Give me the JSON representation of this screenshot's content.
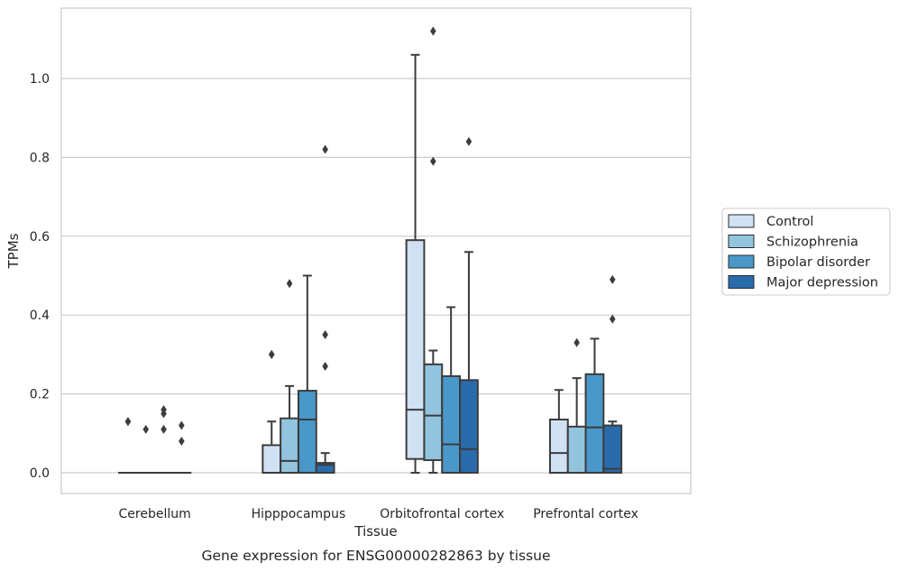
{
  "chart_data": {
    "type": "boxplot",
    "title": "",
    "caption": "Gene expression for ENSG00000282863 by tissue",
    "xlabel": "Tissue",
    "ylabel": "TPMs",
    "ylim": [
      -0.055,
      1.18
    ],
    "yticks": [
      0.0,
      0.2,
      0.4,
      0.6,
      0.8,
      1.0
    ],
    "ytick_labels": [
      "0.0",
      "0.2",
      "0.4",
      "0.6",
      "0.8",
      "1.0"
    ],
    "grid": "horizontal",
    "legend_position": "right",
    "categories": [
      "Cerebellum",
      "Hipppocampus",
      "Orbitofrontal cortex",
      "Prefrontal cortex"
    ],
    "series": [
      {
        "name": "Control",
        "color": "#cfe1f2",
        "boxes": [
          {
            "whislo": 0.0,
            "q1": 0.0,
            "med": 0.0,
            "q3": 0.0,
            "whishi": 0.0,
            "fliers": [
              0.13,
              0.13
            ]
          },
          {
            "whislo": 0.0,
            "q1": 0.0,
            "med": 0.0,
            "q3": 0.07,
            "whishi": 0.13,
            "fliers": [
              0.3,
              0.3
            ]
          },
          {
            "whislo": 0.0,
            "q1": 0.035,
            "med": 0.16,
            "q3": 0.59,
            "whishi": 1.06,
            "fliers": []
          },
          {
            "whislo": 0.0,
            "q1": 0.0,
            "med": 0.05,
            "q3": 0.135,
            "whishi": 0.21,
            "fliers": []
          }
        ]
      },
      {
        "name": "Schizophrenia",
        "color": "#93c4de",
        "boxes": [
          {
            "whislo": 0.0,
            "q1": 0.0,
            "med": 0.0,
            "q3": 0.0,
            "whishi": 0.0,
            "fliers": [
              0.11
            ]
          },
          {
            "whislo": 0.0,
            "q1": 0.0,
            "med": 0.03,
            "q3": 0.138,
            "whishi": 0.22,
            "fliers": [
              0.48
            ]
          },
          {
            "whislo": 0.0,
            "q1": 0.032,
            "med": 0.145,
            "q3": 0.275,
            "whishi": 0.31,
            "fliers": [
              0.79,
              1.12
            ]
          },
          {
            "whislo": 0.0,
            "q1": 0.0,
            "med": 0.0,
            "q3": 0.117,
            "whishi": 0.24,
            "fliers": [
              0.33
            ]
          }
        ]
      },
      {
        "name": "Bipolar disorder",
        "color": "#4a98c9",
        "boxes": [
          {
            "whislo": 0.0,
            "q1": 0.0,
            "med": 0.0,
            "q3": 0.0,
            "whishi": 0.0,
            "fliers": [
              0.11,
              0.15,
              0.16
            ]
          },
          {
            "whislo": 0.0,
            "q1": 0.0,
            "med": 0.135,
            "q3": 0.208,
            "whishi": 0.5,
            "fliers": []
          },
          {
            "whislo": 0.0,
            "q1": 0.0,
            "med": 0.072,
            "q3": 0.245,
            "whishi": 0.42,
            "fliers": []
          },
          {
            "whislo": 0.0,
            "q1": 0.0,
            "med": 0.115,
            "q3": 0.25,
            "whishi": 0.34,
            "fliers": []
          }
        ]
      },
      {
        "name": "Major depression",
        "color": "#2a6bac",
        "boxes": [
          {
            "whislo": 0.0,
            "q1": 0.0,
            "med": 0.0,
            "q3": 0.0,
            "whishi": 0.0,
            "fliers": [
              0.08,
              0.12
            ]
          },
          {
            "whislo": 0.0,
            "q1": 0.0,
            "med": 0.02,
            "q3": 0.025,
            "whishi": 0.05,
            "fliers": [
              0.27,
              0.35,
              0.82
            ]
          },
          {
            "whislo": 0.0,
            "q1": 0.0,
            "med": 0.06,
            "q3": 0.235,
            "whishi": 0.56,
            "fliers": [
              0.84
            ]
          },
          {
            "whislo": 0.0,
            "q1": 0.0,
            "med": 0.01,
            "q3": 0.12,
            "whishi": 0.13,
            "fliers": [
              0.39,
              0.49
            ]
          }
        ]
      }
    ]
  }
}
